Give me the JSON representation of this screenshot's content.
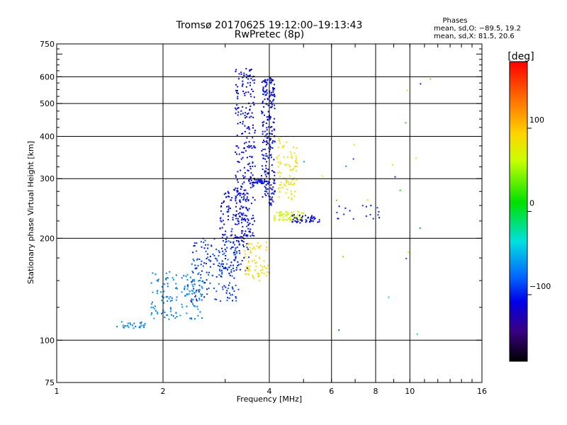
{
  "chart_data": {
    "type": "scatter",
    "title": "Tromsø 20170625 19:12:00–19:13:43",
    "subtitle": "RwPretec (8p)",
    "xlabel": "Frequency [MHz]",
    "ylabel": "Stationary phase Virtual Height [km]",
    "x_scale": "log2",
    "y_scale": "log",
    "xlim": [
      1,
      16
    ],
    "ylim": [
      75,
      750
    ],
    "x_ticks": [
      {
        "value": 1,
        "label": "1"
      },
      {
        "value": 2,
        "label": "2"
      },
      {
        "value": 4,
        "label": "4"
      },
      {
        "value": 6,
        "label": "6"
      },
      {
        "value": 8,
        "label": "8"
      },
      {
        "value": 10,
        "label": "10"
      },
      {
        "value": 16,
        "label": "16"
      }
    ],
    "y_ticks": [
      {
        "value": 75,
        "label": "75"
      },
      {
        "value": 100,
        "label": "100"
      },
      {
        "value": 200,
        "label": "200"
      },
      {
        "value": 300,
        "label": "300"
      },
      {
        "value": 400,
        "label": "400"
      },
      {
        "value": 500,
        "label": "500"
      },
      {
        "value": 600,
        "label": "600"
      },
      {
        "value": 750,
        "label": "750"
      }
    ],
    "x_gridlines": [
      2,
      4,
      6,
      8,
      10
    ],
    "y_gridlines": [
      100,
      200,
      300,
      400,
      500,
      600
    ],
    "stats": {
      "heading": "Phases",
      "line_o": "mean, sd,O: −89.5, 19.2",
      "line_x": "mean, sd,X:  81.5, 20.6"
    },
    "colorbar": {
      "label": "[deg]",
      "range": [
        -180,
        180
      ],
      "ticks": [
        {
          "value": 100,
          "label": "100"
        },
        {
          "value": 0,
          "label": "0"
        },
        {
          "value": -100,
          "label": "−100"
        }
      ]
    },
    "clusters": [
      {
        "name": "sporadic-E-trace",
        "n": 28,
        "f": [
          1.48,
          1.78
        ],
        "h": [
          108,
          114
        ],
        "phase": [
          -75,
          -60
        ]
      },
      {
        "name": "F-rise-low",
        "n": 140,
        "f": [
          1.85,
          2.6
        ],
        "h": [
          115,
          160
        ],
        "phase": [
          -80,
          -55
        ]
      },
      {
        "name": "F-rise-mid",
        "n": 170,
        "f": [
          2.4,
          3.3
        ],
        "h": [
          130,
          200
        ],
        "phase": [
          -110,
          -75
        ]
      },
      {
        "name": "F-rise-upper",
        "n": 150,
        "f": [
          2.9,
          3.5
        ],
        "h": [
          160,
          280
        ],
        "phase": [
          -120,
          -95
        ]
      },
      {
        "name": "O-trace-column",
        "n": 260,
        "f": [
          3.2,
          3.65
        ],
        "h": [
          200,
          640
        ],
        "phase": [
          -115,
          -100
        ]
      },
      {
        "name": "O-cusp-column",
        "n": 230,
        "f": [
          3.8,
          4.15
        ],
        "h": [
          250,
          600
        ],
        "phase": [
          -115,
          -100
        ]
      },
      {
        "name": "O-cusp-arc",
        "n": 40,
        "f": [
          3.5,
          3.9
        ],
        "h": [
          290,
          300
        ],
        "phase": [
          -112,
          -102
        ]
      },
      {
        "name": "X-trace-low",
        "n": 70,
        "f": [
          3.4,
          4.0
        ],
        "h": [
          150,
          195
        ],
        "phase": [
          85,
          100
        ]
      },
      {
        "name": "X-trace-column",
        "n": 90,
        "f": [
          4.2,
          4.8
        ],
        "h": [
          260,
          400
        ],
        "phase": [
          80,
          95
        ]
      },
      {
        "name": "X-trace-branch",
        "n": 70,
        "f": [
          4.1,
          5.0
        ],
        "h": [
          225,
          240
        ],
        "phase": [
          55,
          75
        ]
      },
      {
        "name": "F2-spread",
        "n": 45,
        "f": [
          4.6,
          5.6
        ],
        "h": [
          222,
          235
        ],
        "phase": [
          -120,
          -100
        ]
      },
      {
        "name": "F2-spread-outer",
        "n": 18,
        "f": [
          6.2,
          8.2
        ],
        "h": [
          228,
          250
        ],
        "phase": [
          -110,
          -90
        ]
      },
      {
        "name": "high-freq-scatter",
        "n": 22,
        "f": [
          5.0,
          13.0
        ],
        "h": [
          100,
          650
        ],
        "phase": [
          -110,
          100
        ]
      }
    ]
  }
}
